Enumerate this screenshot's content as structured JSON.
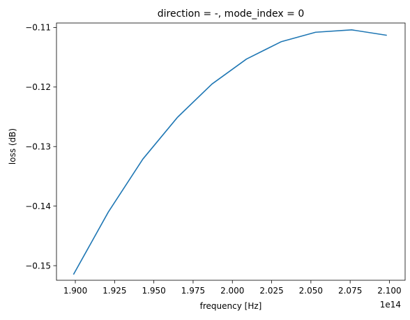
{
  "chart_data": {
    "type": "line",
    "title": "direction = -, mode_index = 0",
    "xlabel": "frequency [Hz]",
    "ylabel": "loss (dB)",
    "x_offset_label": "1e14",
    "x_tick_labels": [
      "1.900",
      "1.925",
      "1.950",
      "1.975",
      "2.000",
      "2.025",
      "2.050",
      "2.075",
      "2.100"
    ],
    "y_tick_labels": [
      "−0.11",
      "−0.12",
      "−0.13",
      "−0.14",
      "−0.15"
    ],
    "xlim": [
      1.888,
      2.11
    ],
    "ylim": [
      -0.15245,
      -0.10925
    ],
    "grid": false,
    "series": [
      {
        "color": "#1f77b4",
        "x": [
          1.899,
          1.921,
          1.943,
          1.965,
          1.987,
          2.009,
          2.031,
          2.053,
          2.076,
          2.098
        ],
        "y": [
          -0.1514,
          -0.141,
          -0.1321,
          -0.1251,
          -0.1195,
          -0.1153,
          -0.1124,
          -0.1108,
          -0.1104,
          -0.1113
        ]
      }
    ],
    "x_ticks": [
      1.9,
      1.925,
      1.95,
      1.975,
      2.0,
      2.025,
      2.05,
      2.075,
      2.1
    ],
    "y_ticks": [
      -0.11,
      -0.12,
      -0.13,
      -0.14,
      -0.15
    ]
  }
}
